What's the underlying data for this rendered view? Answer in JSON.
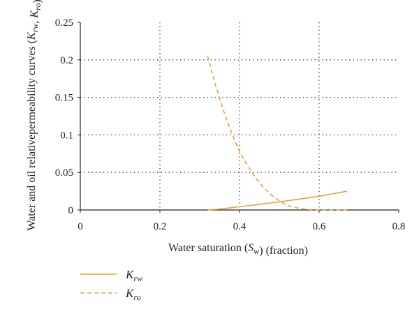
{
  "colors": {
    "series": "#E8A040",
    "axis": "#222222",
    "grid": "#333333"
  },
  "chart_data": {
    "type": "line",
    "title": "",
    "xlabel": "Water saturation (S_w) (fraction)",
    "xlabel_parts": [
      "Water saturation (",
      "S",
      "w",
      ") (fraction)"
    ],
    "ylabel_lines": [
      [
        "Water and oil relative"
      ],
      [
        "permeability curves (",
        "K",
        "rw",
        ", ",
        "K",
        "ro",
        ")"
      ]
    ],
    "xlim": [
      0,
      0.8
    ],
    "ylim": [
      0,
      0.25
    ],
    "x_ticks": [
      0,
      0.2,
      0.4,
      0.6,
      0.8
    ],
    "x_tick_labels": [
      "0",
      "0.2",
      "0.4",
      "0.6",
      "0.8"
    ],
    "y_ticks": [
      0,
      0.05,
      0.1,
      0.15,
      0.2,
      0.25
    ],
    "y_tick_labels": [
      "0",
      "0.05",
      "0.1",
      "0.15",
      "0.2",
      "0.25"
    ],
    "grid": "dotted",
    "legend_position": "bottom-left",
    "series": [
      {
        "name": "K_rw",
        "name_parts": [
          "K",
          "rw"
        ],
        "style": "solid",
        "x": [
          0.32,
          0.35,
          0.4,
          0.45,
          0.5,
          0.55,
          0.6,
          0.67
        ],
        "y": [
          0.0,
          0.0012,
          0.0043,
          0.0075,
          0.0108,
          0.0145,
          0.0183,
          0.025
        ]
      },
      {
        "name": "K_ro",
        "name_parts": [
          "K",
          "ro"
        ],
        "style": "dashed",
        "x": [
          0.32,
          0.33,
          0.34,
          0.35,
          0.36,
          0.37,
          0.38,
          0.39,
          0.4,
          0.42,
          0.44,
          0.46,
          0.48,
          0.5,
          0.52,
          0.55,
          0.58,
          0.6,
          0.62,
          0.65,
          0.67
        ],
        "y": [
          0.205,
          0.185,
          0.166,
          0.149,
          0.132,
          0.117,
          0.103,
          0.09,
          0.078,
          0.059,
          0.043,
          0.03,
          0.02,
          0.012,
          0.006,
          0.002,
          0.0004,
          0.0,
          0.0,
          0.0,
          0.0
        ]
      }
    ]
  }
}
